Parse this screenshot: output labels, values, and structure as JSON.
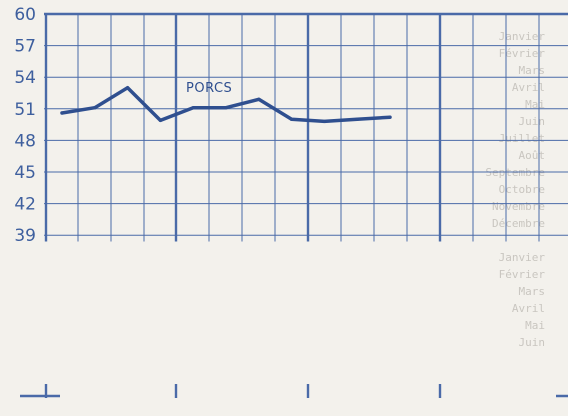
{
  "colors": {
    "paper": "#f3f1ec",
    "grid": "#4a6aa8",
    "line": "#2f4f8f",
    "text": "#3e5f9e",
    "ghost_text": "#c9c6c0"
  },
  "chart_data": {
    "type": "line",
    "title": "",
    "xlabel": "",
    "ylabel": "",
    "ylim": [
      36,
      60
    ],
    "yticks": [
      60,
      57,
      54,
      51,
      48,
      45,
      42,
      39
    ],
    "grid": true,
    "series": [
      {
        "name": "PORCS",
        "x": [
          1,
          2,
          3,
          4,
          5,
          6,
          7,
          8,
          9,
          10,
          11
        ],
        "values": [
          50.6,
          51.1,
          53.0,
          49.9,
          51.1,
          51.1,
          51.9,
          50.0,
          49.8,
          50.0,
          50.2
        ]
      }
    ]
  },
  "background_text": [
    "Janvier",
    "Février",
    "Mars",
    "Avril",
    "Mai",
    "Juin",
    "Juillet",
    "Août",
    "Septembre",
    "Octobre",
    "Novembre",
    "Décembre",
    "Janvier",
    "Février",
    "Mars",
    "Avril",
    "Mai",
    "Juin"
  ]
}
